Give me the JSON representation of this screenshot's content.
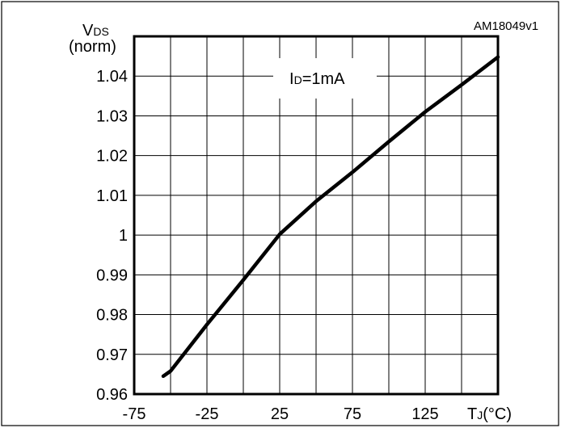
{
  "chart_data": {
    "type": "line",
    "figure_id": "AM18049v1",
    "ylabel": {
      "main": "V",
      "sub": "DS",
      "unit": "(norm)"
    },
    "xlabel": {
      "main": "T",
      "sub": "J",
      "unit": "(°C)"
    },
    "xlim": [
      -75,
      175
    ],
    "ylim": [
      0.96,
      1.05
    ],
    "x_ticks": [
      -75,
      -50,
      -25,
      0,
      25,
      50,
      75,
      100,
      125,
      150,
      175
    ],
    "x_tick_labels": [
      {
        "value": -75,
        "label": "-75"
      },
      {
        "value": -25,
        "label": "-25"
      },
      {
        "value": 25,
        "label": "25"
      },
      {
        "value": 75,
        "label": "75"
      },
      {
        "value": 125,
        "label": "125"
      }
    ],
    "y_ticks": [
      0.96,
      0.97,
      0.98,
      0.99,
      1.0,
      1.01,
      1.02,
      1.03,
      1.04,
      1.05
    ],
    "y_tick_labels": [
      {
        "value": 0.96,
        "label": "0.96"
      },
      {
        "value": 0.97,
        "label": "0.97"
      },
      {
        "value": 0.98,
        "label": "0.98"
      },
      {
        "value": 0.99,
        "label": "0.99"
      },
      {
        "value": 1.0,
        "label": "1"
      },
      {
        "value": 1.01,
        "label": "1.01"
      },
      {
        "value": 1.02,
        "label": "1.02"
      },
      {
        "value": 1.03,
        "label": "1.03"
      },
      {
        "value": 1.04,
        "label": "1.04"
      }
    ],
    "annotation": {
      "main": "I",
      "sub": "D",
      "rest": "=1mA"
    },
    "grid": true,
    "series": [
      {
        "color": "#000000",
        "x": [
          -55,
          -50,
          -25,
          0,
          25,
          50,
          75,
          100,
          125,
          150,
          175
        ],
        "y": [
          0.9645,
          0.9658,
          0.9775,
          0.9887,
          1.0002,
          1.0085,
          1.0158,
          1.0235,
          1.031,
          1.0378,
          1.0448
        ]
      }
    ]
  }
}
